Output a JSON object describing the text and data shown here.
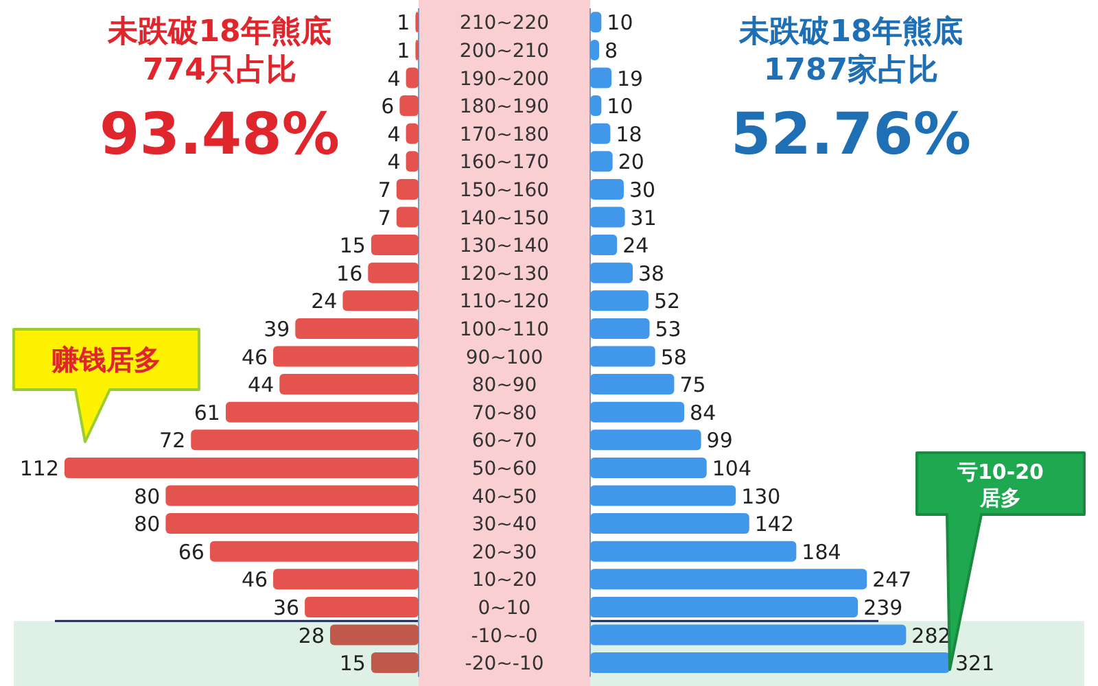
{
  "chart_data": [
    {
      "type": "bar",
      "orientation": "horizontal",
      "title": "未跌破18年熊底",
      "subtitle": "774只占比",
      "data_labels": true,
      "tick_labels": false,
      "categories": [
        "210~220",
        "200~210",
        "190~200",
        "180~190",
        "170~180",
        "160~170",
        "150~160",
        "140~150",
        "130~140",
        "120~130",
        "110~120",
        "100~110",
        "90~100",
        "80~90",
        "70~80",
        "60~70",
        "50~60",
        "40~50",
        "30~40",
        "20~30",
        "10~20",
        "0~10",
        "-10~-0",
        "-20~-10"
      ],
      "series": [
        {
          "values": [
            1,
            1,
            4,
            6,
            4,
            4,
            7,
            7,
            15,
            16,
            24,
            39,
            46,
            44,
            61,
            72,
            112,
            80,
            80,
            66,
            46,
            36,
            28,
            15
          ],
          "colors": [
            "#e5534f",
            "#e5534f",
            "#e5534f",
            "#e5534f",
            "#e5534f",
            "#e5534f",
            "#e5534f",
            "#e5534f",
            "#e5534f",
            "#e5534f",
            "#e5534f",
            "#e5534f",
            "#e5534f",
            "#e5534f",
            "#e5534f",
            "#e5534f",
            "#e5534f",
            "#e5534f",
            "#e5534f",
            "#e5534f",
            "#e5534f",
            "#e5534f",
            "#c0584c",
            "#c0584c"
          ]
        }
      ],
      "bands": [
        {
          "axis": "y",
          "from": "-10~-0",
          "to": "-20~-10",
          "color": "#dff1e6"
        }
      ],
      "annotations": [
        "93.48%",
        "赚钱居多"
      ]
    },
    {
      "type": "bar",
      "orientation": "horizontal",
      "title": "未跌破18年熊底",
      "subtitle": "1787家占比",
      "data_labels": true,
      "tick_labels": "y",
      "categories": [
        "210~220",
        "200~210",
        "190~200",
        "180~190",
        "170~180",
        "160~170",
        "150~160",
        "140~150",
        "130~140",
        "120~130",
        "110~120",
        "100~110",
        "90~100",
        "80~90",
        "70~80",
        "60~70",
        "50~60",
        "40~50",
        "30~40",
        "20~30",
        "10~20",
        "0~10",
        "-10~-0",
        "-20~-10"
      ],
      "series": [
        {
          "color": "#4198ea",
          "values": [
            10,
            8,
            19,
            10,
            18,
            20,
            30,
            31,
            24,
            38,
            52,
            53,
            58,
            75,
            84,
            99,
            104,
            130,
            142,
            184,
            247,
            239,
            282,
            321
          ]
        }
      ],
      "bands": [
        {
          "axis": "y",
          "from": "-10~-0",
          "to": "-20~-10",
          "color": "#dff1e6"
        }
      ],
      "annotations": [
        "52.76%",
        "亏10-20居多"
      ]
    }
  ]
}
